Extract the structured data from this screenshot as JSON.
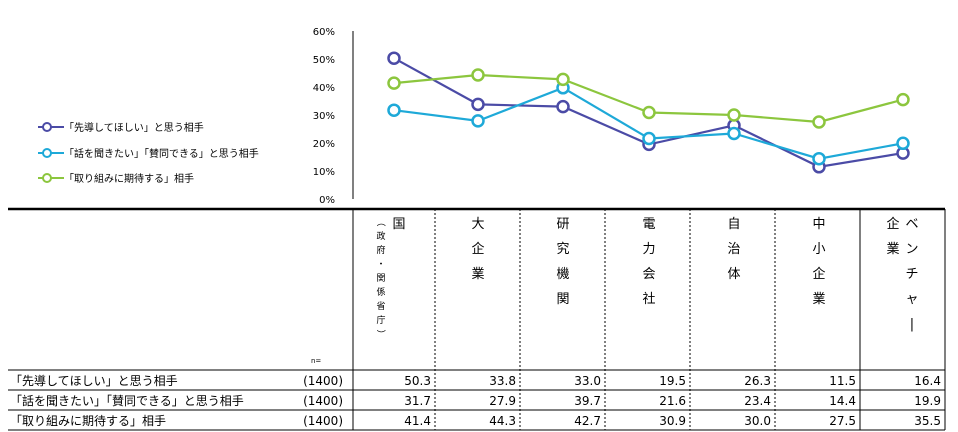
{
  "chart_data": {
    "type": "line",
    "ylim": [
      0,
      60
    ],
    "yticks": [
      "60%",
      "50%",
      "40%",
      "30%",
      "20%",
      "10%",
      "0%"
    ],
    "ytick_values": [
      60,
      50,
      40,
      30,
      20,
      10,
      0
    ],
    "categories": [
      "国（政府・関係省庁）",
      "大企業",
      "研究機関",
      "電力会社",
      "自治体",
      "中小企業",
      "ベンチャー企業"
    ],
    "category_columns": [
      {
        "main": "国",
        "sub": "（政府・関係省庁）"
      },
      {
        "main": "大企業",
        "sub": ""
      },
      {
        "main": "研究機関",
        "sub": ""
      },
      {
        "main": "電力会社",
        "sub": ""
      },
      {
        "main": "自治体",
        "sub": ""
      },
      {
        "main": "中小企業",
        "sub": ""
      },
      {
        "main": "ベンチャー",
        "sub": "企業"
      }
    ],
    "legend_position": "left",
    "series": [
      {
        "name": "「先導してほしい」と思う相手",
        "n": "(1400)",
        "color": "#4b4ba6",
        "values": [
          50.3,
          33.8,
          33.0,
          19.5,
          26.3,
          11.5,
          16.4
        ],
        "labels": [
          "50.3",
          "33.8",
          "33.0",
          "19.5",
          "26.3",
          "11.5",
          "16.4"
        ]
      },
      {
        "name": "「話を聞きたい」「賛同できる」と思う相手",
        "n": "(1400)",
        "color": "#1ea9d8",
        "values": [
          31.7,
          27.9,
          39.7,
          21.6,
          23.4,
          14.4,
          19.9
        ],
        "labels": [
          "31.7",
          "27.9",
          "39.7",
          "21.6",
          "23.4",
          "14.4",
          "19.9"
        ]
      },
      {
        "name": "「取り組みに期待する」相手",
        "n": "(1400)",
        "color": "#8cc63e",
        "values": [
          41.4,
          44.3,
          42.7,
          30.9,
          30.0,
          27.5,
          35.5
        ],
        "labels": [
          "41.4",
          "44.3",
          "42.7",
          "30.9",
          "30.0",
          "27.5",
          "35.5"
        ]
      }
    ],
    "n_label": "n="
  }
}
